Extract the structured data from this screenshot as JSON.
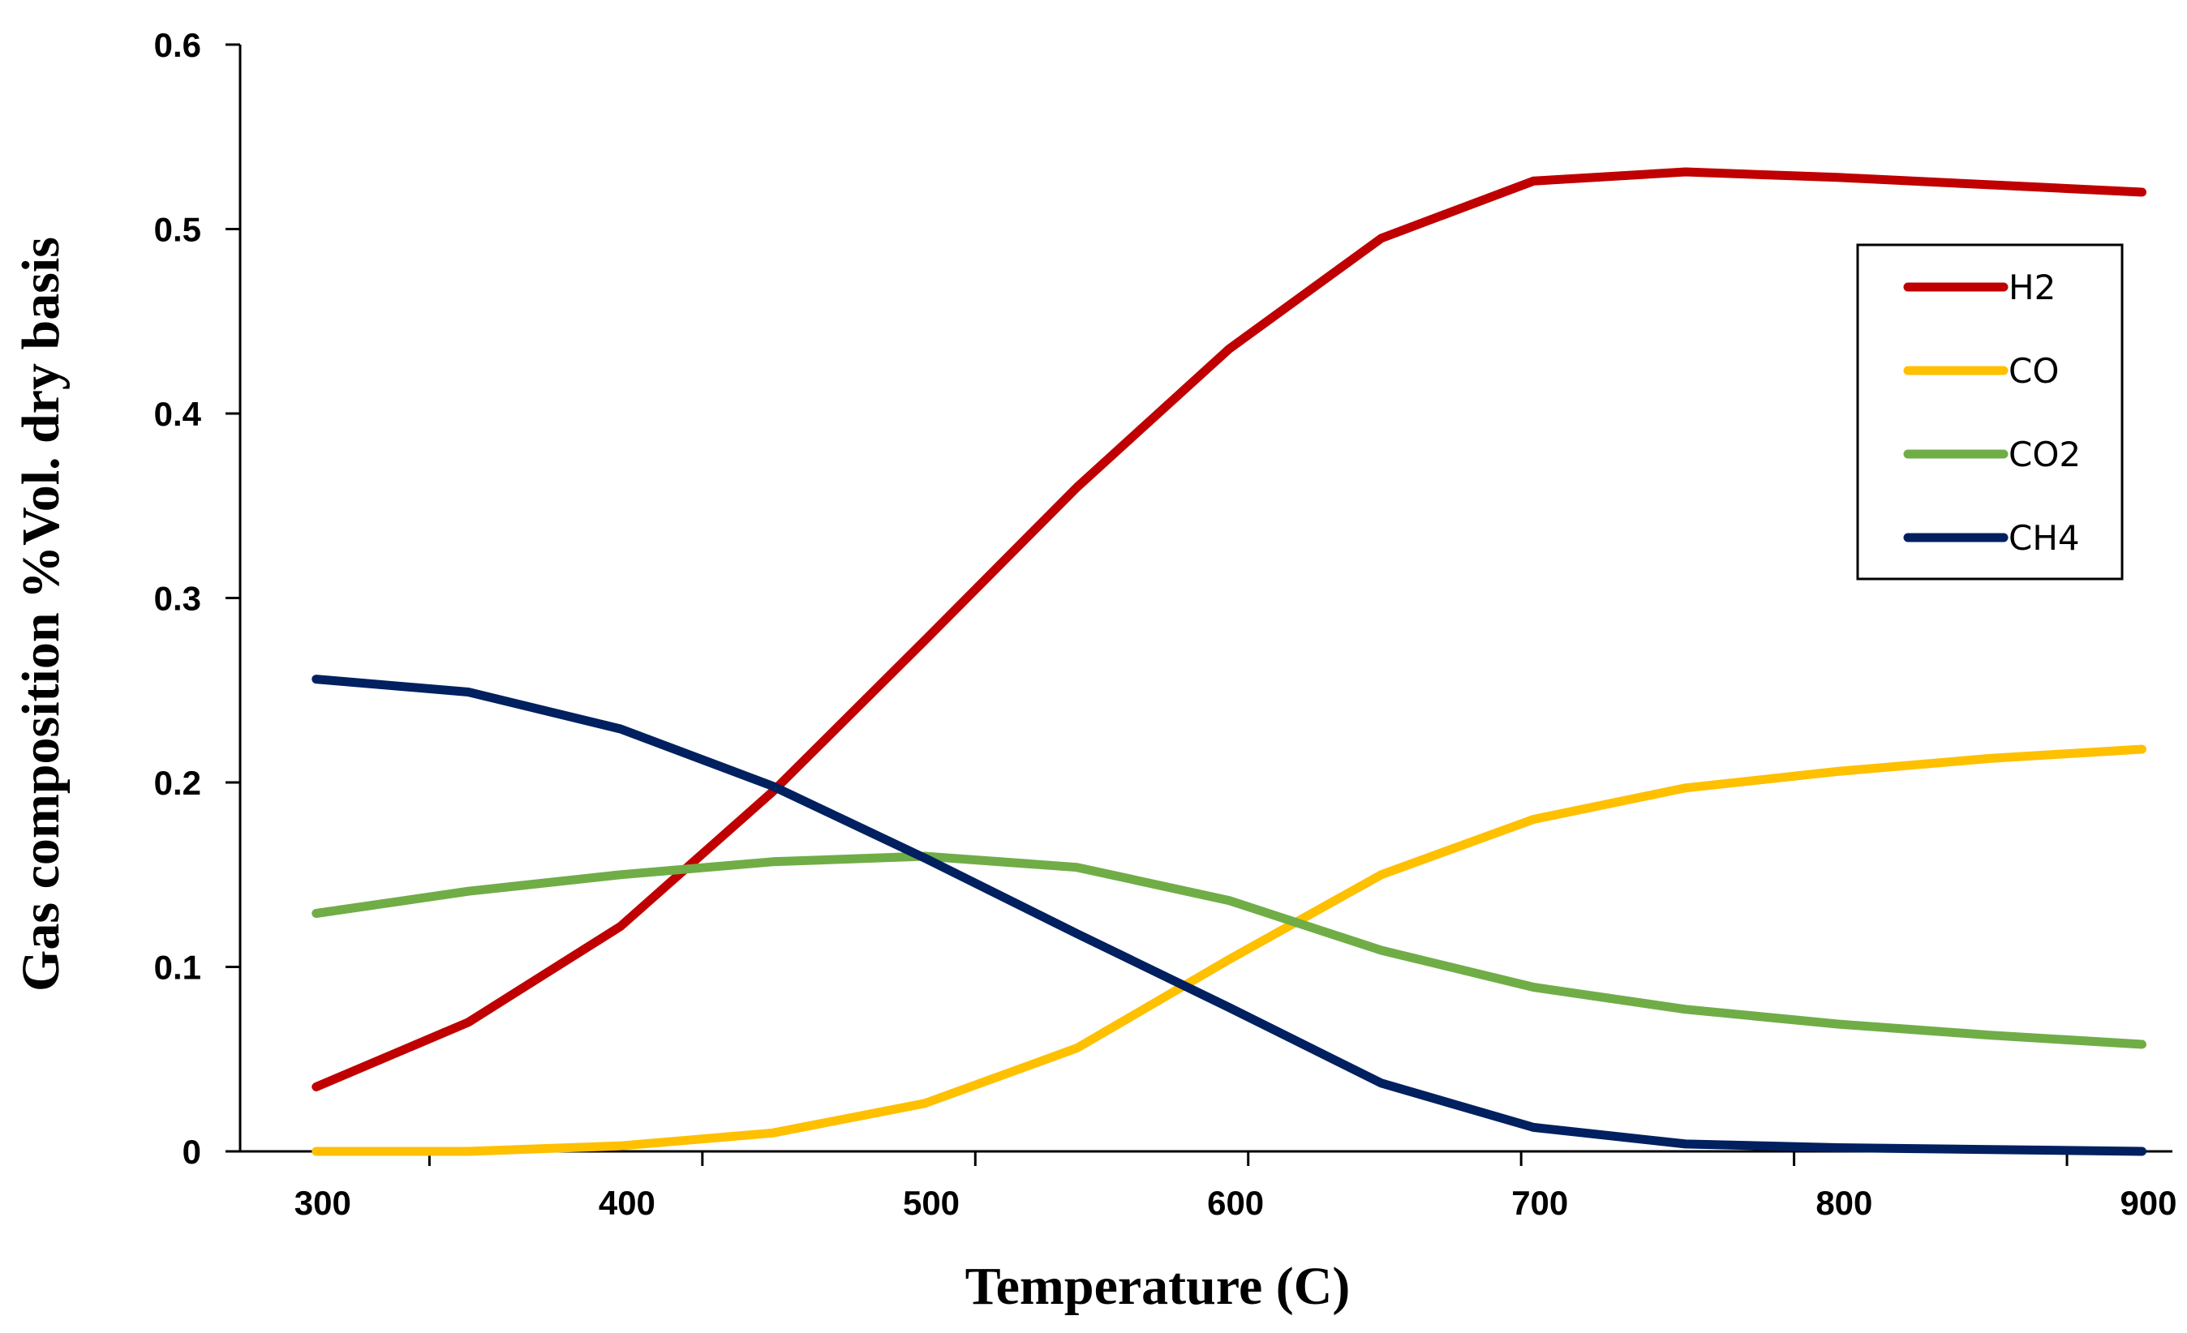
{
  "chart_data": {
    "type": "line",
    "title": "",
    "xlabel": "Temperature (C)",
    "ylabel": "Gas composition %Vol. dry basis",
    "xlim": [
      275,
      910
    ],
    "ylim": [
      0,
      0.6
    ],
    "xticks": [
      300,
      400,
      500,
      600,
      700,
      800,
      900
    ],
    "yticks": [
      0,
      0.1,
      0.2,
      0.3,
      0.4,
      0.5,
      0.6
    ],
    "xtick_labels": [
      "300",
      "400",
      "500",
      "600",
      "700",
      "800",
      "900"
    ],
    "ytick_labels": [
      "0",
      "0.1",
      "0.2",
      "0.3",
      "0.4",
      "0.5",
      "0.6"
    ],
    "grid": false,
    "legend_position": "top-right",
    "x": [
      300,
      350,
      400,
      450,
      500,
      550,
      600,
      650,
      700,
      750,
      800,
      850,
      900
    ],
    "series": [
      {
        "name": "H2",
        "color": "#C00000",
        "values": [
          0.035,
          0.07,
          0.122,
          0.195,
          0.277,
          0.36,
          0.435,
          0.495,
          0.526,
          0.531,
          0.528,
          0.524,
          0.52
        ]
      },
      {
        "name": "CO",
        "color": "#FFC000",
        "values": [
          0.0,
          0.0,
          0.003,
          0.01,
          0.026,
          0.056,
          0.104,
          0.15,
          0.18,
          0.197,
          0.206,
          0.213,
          0.218
        ]
      },
      {
        "name": "CO2",
        "color": "#70AD47",
        "values": [
          0.129,
          0.141,
          0.15,
          0.157,
          0.16,
          0.154,
          0.136,
          0.109,
          0.089,
          0.077,
          0.069,
          0.063,
          0.058
        ]
      },
      {
        "name": "CH4",
        "color": "#002060",
        "values": [
          0.256,
          0.249,
          0.229,
          0.198,
          0.159,
          0.118,
          0.078,
          0.037,
          0.013,
          0.004,
          0.002,
          0.001,
          0.0
        ]
      }
    ]
  }
}
